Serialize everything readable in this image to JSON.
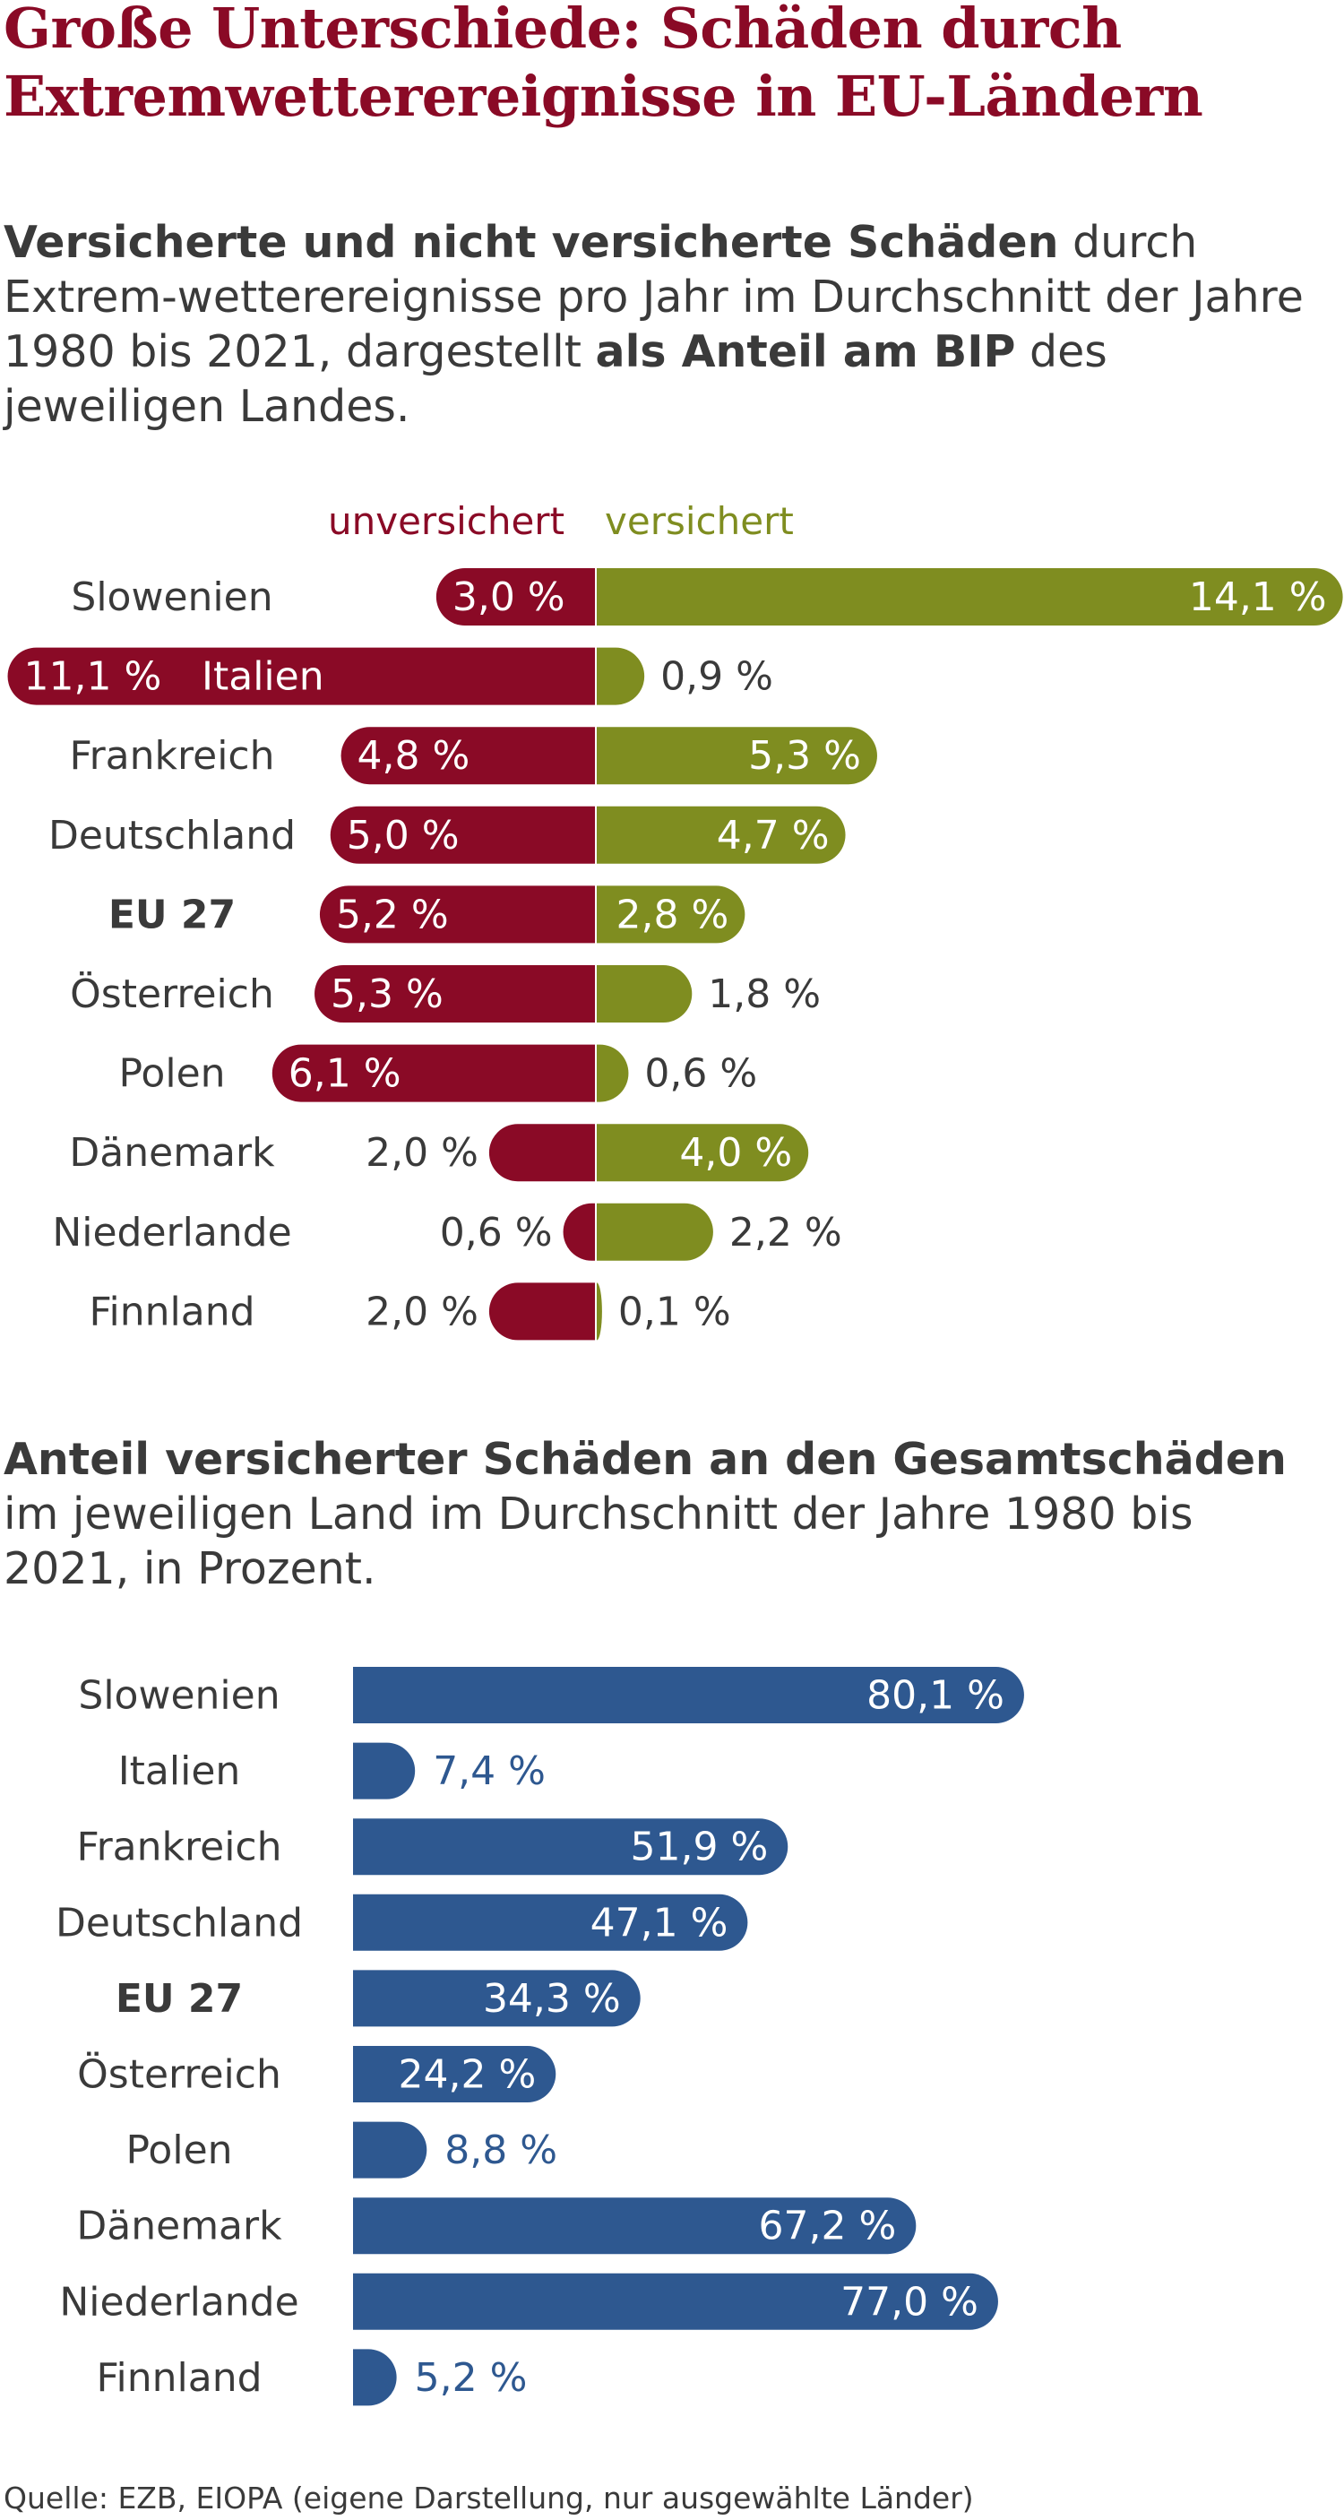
{
  "title": {
    "line1": "Große Unterschiede: Schäden durch",
    "line2": "Extremwetterereignisse in EU-Ländern"
  },
  "subtitle1": {
    "bold": "Versicherte und nicht versicherte Schäden",
    "rest1": " durch Extrem-wetterereignisse pro Jahr im Durchschnitt der Jahre 1980 bis 2021, dargestellt ",
    "bold2": "als Anteil am BIP",
    "rest2": " des jeweiligen Landes."
  },
  "legend": {
    "uninsured": "unversichert",
    "insured": "versichert"
  },
  "subtitle2": {
    "bold": "Anteil versicherter Schäden an den Gesamtschäden",
    "rest": " im jeweiligen Land im Durchschnitt der Jahre 1980 bis 2021, in Prozent."
  },
  "colors": {
    "uninsured": "#8a0a26",
    "insured": "#7f8d20",
    "share": "#2e5890",
    "text": "#3a3a3a"
  },
  "source": "Quelle: EZB, EIOPA (eigene Darstellung, nur ausgewählte Länder)",
  "chart_data": [
    {
      "type": "bar",
      "orientation": "horizontal-diverging",
      "unit": "% des BIP",
      "categories": [
        "Slowenien",
        "Italien",
        "Frankreich",
        "Deutschland",
        "EU 27",
        "Österreich",
        "Polen",
        "Dänemark",
        "Niederlande",
        "Finnland"
      ],
      "bold_categories": [
        "EU 27"
      ],
      "series": [
        {
          "name": "unversichert",
          "values": [
            3.0,
            11.1,
            4.8,
            5.0,
            5.2,
            5.3,
            6.1,
            2.0,
            0.6,
            2.0
          ],
          "labels": [
            "3,0 %",
            "11,1 %",
            "4,8 %",
            "5,0 %",
            "5,2 %",
            "5,3 %",
            "6,1 %",
            "2,0 %",
            "0,6 %",
            "2,0 %"
          ]
        },
        {
          "name": "versichert",
          "values": [
            14.1,
            0.9,
            5.3,
            4.7,
            2.8,
            1.8,
            0.6,
            4.0,
            2.2,
            0.1
          ],
          "labels": [
            "14,1 %",
            "0,9 %",
            "5,3 %",
            "4,7 %",
            "2,8 %",
            "1,8 %",
            "0,6 %",
            "4,0 %",
            "2,2 %",
            "0,1 %"
          ]
        }
      ]
    },
    {
      "type": "bar",
      "orientation": "horizontal",
      "unit": "%",
      "categories": [
        "Slowenien",
        "Italien",
        "Frankreich",
        "Deutschland",
        "EU 27",
        "Österreich",
        "Polen",
        "Dänemark",
        "Niederlande",
        "Finnland"
      ],
      "bold_categories": [
        "EU 27"
      ],
      "values": [
        80.1,
        7.4,
        51.9,
        47.1,
        34.3,
        24.2,
        8.8,
        67.2,
        77.0,
        5.2
      ],
      "labels": [
        "80,1 %",
        "7,4 %",
        "51,9 %",
        "47,1 %",
        "34,3 %",
        "24,2 %",
        "8,8 %",
        "67,2 %",
        "77,0 %",
        "5,2 %"
      ]
    }
  ]
}
